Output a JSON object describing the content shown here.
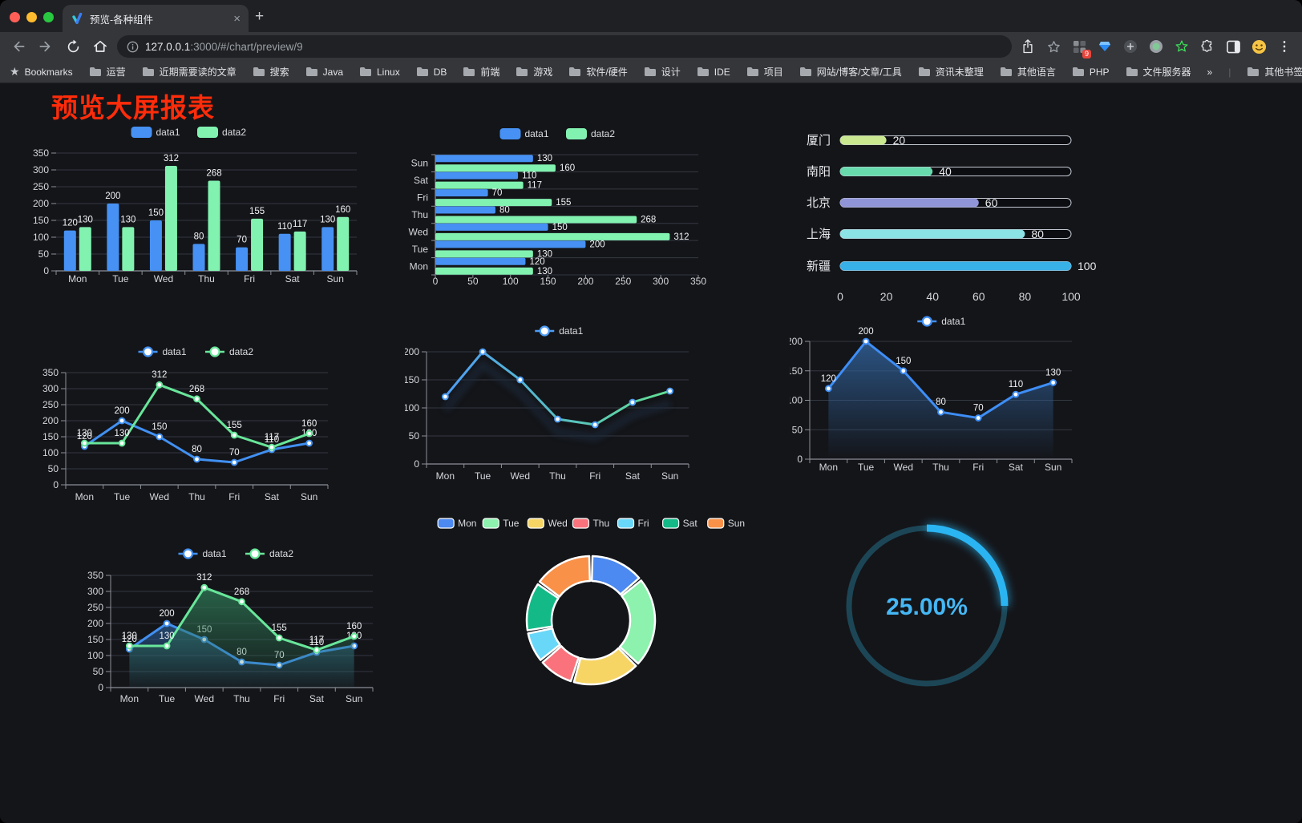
{
  "browser": {
    "traffic_lights": [
      "#ff5f57",
      "#febc2e",
      "#28c840"
    ],
    "tab": {
      "title": "预览-各种组件",
      "close_glyph": "×",
      "new_tab_glyph": "+"
    },
    "address": {
      "host": "127.0.0.1",
      "rest": ":3000/#/chart/preview/9"
    },
    "bookmarks_bar": {
      "star_glyph": "★",
      "label": "Bookmarks",
      "folders": [
        "运营",
        "近期需要读的文章",
        "搜索",
        "Java",
        "Linux",
        "DB",
        "前端",
        "游戏",
        "软件/硬件",
        "设计",
        "IDE",
        "项目",
        "网站/博客/文章/工具",
        "资讯未整理",
        "其他语言",
        "PHP",
        "文件服务器"
      ],
      "overflow_glyph": "»",
      "other_bookmarks": "其他书签"
    },
    "extensions_badge": "9",
    "menu_glyph": "⋮"
  },
  "page": {
    "title": "预览大屏报表",
    "title_color": "#FE2C0A",
    "background": "#141519"
  },
  "chart_data": [
    {
      "id": "bar-grouped",
      "type": "bar",
      "legend_position": "top",
      "grid": true,
      "categories": [
        "Mon",
        "Tue",
        "Wed",
        "Thu",
        "Fri",
        "Sat",
        "Sun"
      ],
      "series": [
        {
          "name": "data1",
          "color": "#4691F3",
          "values": [
            120,
            200,
            150,
            80,
            70,
            110,
            130
          ]
        },
        {
          "name": "data2",
          "color": "#82F2B1",
          "values": [
            130,
            130,
            312,
            268,
            155,
            117,
            160
          ]
        }
      ],
      "ylim": [
        0,
        350
      ],
      "ystep": 50
    },
    {
      "id": "bar-horizontal",
      "type": "bar",
      "orientation": "horizontal",
      "legend_position": "top",
      "grid": true,
      "categories_top_to_bottom": [
        "Sun",
        "Sat",
        "Fri",
        "Thu",
        "Wed",
        "Tue",
        "Mon"
      ],
      "series": [
        {
          "name": "data1",
          "color": "#4691F3",
          "values_top_to_bottom": [
            130,
            110,
            70,
            80,
            150,
            200,
            120
          ]
        },
        {
          "name": "data2",
          "color": "#82F2B1",
          "values_top_to_bottom": [
            160,
            117,
            155,
            268,
            312,
            130,
            130
          ]
        }
      ],
      "xlim": [
        0,
        350
      ],
      "xstep": 50
    },
    {
      "id": "progress-bars",
      "type": "bar",
      "style": "progress",
      "items": [
        {
          "label": "厦门",
          "value": 20,
          "color": "#C9E88F"
        },
        {
          "label": "南阳",
          "value": 40,
          "color": "#68DBAD"
        },
        {
          "label": "北京",
          "value": 60,
          "color": "#9095D8"
        },
        {
          "label": "上海",
          "value": 80,
          "color": "#8BE3E5"
        },
        {
          "label": "新疆",
          "value": 100,
          "color": "#38B0E8"
        }
      ],
      "xlim": [
        0,
        100
      ],
      "xticks": [
        0,
        20,
        40,
        60,
        80,
        100
      ]
    },
    {
      "id": "line-two-series",
      "type": "line",
      "legend_position": "top",
      "labels": true,
      "categories": [
        "Mon",
        "Tue",
        "Wed",
        "Thu",
        "Fri",
        "Sat",
        "Sun"
      ],
      "series": [
        {
          "name": "data1",
          "color": "#4190F2",
          "values": [
            120,
            200,
            150,
            80,
            70,
            110,
            130
          ]
        },
        {
          "name": "data2",
          "color": "#68E69A",
          "values": [
            130,
            130,
            312,
            268,
            155,
            117,
            160
          ]
        }
      ],
      "ylim": [
        0,
        350
      ],
      "ystep": 50
    },
    {
      "id": "line-gradient",
      "type": "line",
      "legend_position": "top",
      "labels": false,
      "shadow": true,
      "categories": [
        "Mon",
        "Tue",
        "Wed",
        "Thu",
        "Fri",
        "Sat",
        "Sun"
      ],
      "series": [
        {
          "name": "data1",
          "gradient": [
            "#4D9DF5",
            "#62E092"
          ],
          "color": "#4D9DF5",
          "values": [
            120,
            200,
            150,
            80,
            70,
            110,
            130
          ]
        }
      ],
      "ylim": [
        0,
        200
      ],
      "ystep": 50
    },
    {
      "id": "line-area",
      "type": "area",
      "legend_position": "top",
      "labels": true,
      "categories": [
        "Mon",
        "Tue",
        "Wed",
        "Thu",
        "Fri",
        "Sat",
        "Sun"
      ],
      "series": [
        {
          "name": "data1",
          "color": "#3E8EF7",
          "area_from": "rgba(47,95,150,0.85)",
          "area_to": "rgba(47,95,150,0)",
          "values": [
            120,
            200,
            150,
            80,
            70,
            110,
            130
          ]
        }
      ],
      "ylim": [
        0,
        200
      ],
      "ystep": 50
    },
    {
      "id": "line-two-area",
      "type": "area",
      "legend_position": "top",
      "labels": true,
      "categories": [
        "Mon",
        "Tue",
        "Wed",
        "Thu",
        "Fri",
        "Sat",
        "Sun"
      ],
      "series": [
        {
          "name": "data1",
          "color": "#4190F2",
          "area_from": "rgba(42,88,140,0.75)",
          "area_to": "rgba(42,88,140,0.05)",
          "values": [
            120,
            200,
            150,
            80,
            70,
            110,
            130
          ]
        },
        {
          "name": "data2",
          "color": "#68E69A",
          "area_from": "rgba(45,118,84,0.8)",
          "area_to": "rgba(45,118,84,0.05)",
          "values": [
            130,
            130,
            312,
            268,
            155,
            117,
            160
          ]
        }
      ],
      "ylim": [
        0,
        350
      ],
      "ystep": 50
    },
    {
      "id": "donut",
      "type": "pie",
      "inner_radius_ratio": 0.61,
      "legend_position": "top",
      "items": [
        {
          "label": "Mon",
          "value": 120,
          "color": "#4C89F0"
        },
        {
          "label": "Tue",
          "value": 200,
          "color": "#8CF2AE"
        },
        {
          "label": "Wed",
          "value": 150,
          "color": "#F6D565"
        },
        {
          "label": "Thu",
          "value": 80,
          "color": "#FA737C"
        },
        {
          "label": "Fri",
          "value": 70,
          "color": "#69D7F8"
        },
        {
          "label": "Sat",
          "value": 110,
          "color": "#13BA87"
        },
        {
          "label": "Sun",
          "value": 130,
          "color": "#FA9149"
        }
      ]
    },
    {
      "id": "gauge",
      "type": "gauge",
      "value": 25,
      "display": "25.00%",
      "color": "#2AB5F2",
      "track_color": "#1C4656",
      "text_color": "#45B7F5"
    }
  ]
}
